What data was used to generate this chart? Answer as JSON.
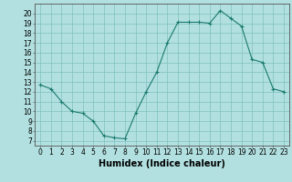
{
  "x": [
    0,
    1,
    2,
    3,
    4,
    5,
    6,
    7,
    8,
    9,
    10,
    11,
    12,
    13,
    14,
    15,
    16,
    17,
    18,
    19,
    20,
    21,
    22,
    23
  ],
  "y": [
    12.7,
    12.3,
    11.0,
    10.0,
    9.8,
    9.0,
    7.5,
    7.3,
    7.2,
    9.8,
    12.0,
    14.0,
    17.0,
    19.1,
    19.1,
    19.1,
    19.0,
    20.3,
    19.5,
    18.7,
    15.3,
    15.0,
    12.3,
    12.0
  ],
  "xlabel": "Humidex (Indice chaleur)",
  "line_color": "#1a7a6e",
  "marker_color": "#1a7a6e",
  "bg_color": "#b2e0e0",
  "grid_color": "#7fbfbf",
  "xlim": [
    -0.5,
    23.5
  ],
  "ylim": [
    6.5,
    21.0
  ],
  "xticks": [
    0,
    1,
    2,
    3,
    4,
    5,
    6,
    7,
    8,
    9,
    10,
    11,
    12,
    13,
    14,
    15,
    16,
    17,
    18,
    19,
    20,
    21,
    22,
    23
  ],
  "yticks": [
    7,
    8,
    9,
    10,
    11,
    12,
    13,
    14,
    15,
    16,
    17,
    18,
    19,
    20
  ],
  "tick_fontsize": 5.5,
  "xlabel_fontsize": 7.0
}
